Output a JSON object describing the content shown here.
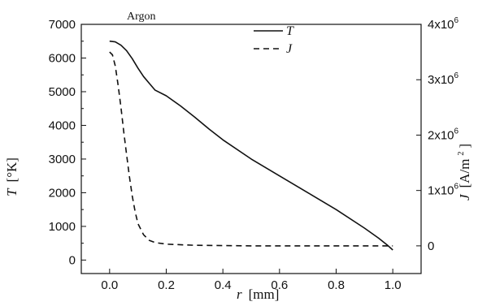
{
  "chart_data": {
    "type": "line",
    "annotation": "Argon",
    "xlabel": {
      "var": "r",
      "unit": "[mm]"
    },
    "ylabel_left": {
      "var": "T",
      "unit": "[°K]"
    },
    "ylabel_right": {
      "var": "J",
      "unit": "[A/m",
      "unit_sup": "2",
      "unit_end": "]"
    },
    "xlim": [
      -0.1,
      1.1
    ],
    "ylim_left": [
      -400,
      7000
    ],
    "ylim_right": [
      -500000,
      4000000
    ],
    "x_ticks": [
      0.0,
      0.2,
      0.4,
      0.6,
      0.8,
      1.0
    ],
    "x_tick_labels": [
      "0.0",
      "0.2",
      "0.4",
      "0.6",
      "0.8",
      "1.0"
    ],
    "y_left_ticks": [
      0,
      500,
      1000,
      1500,
      2000,
      2500,
      3000,
      3500,
      4000,
      4500,
      5000,
      5500,
      6000,
      6500,
      7000
    ],
    "y_left_tick_labels": [
      "0",
      "500",
      "1000",
      "1500",
      "2000",
      "2500",
      "3000",
      "3500",
      "4000",
      "4500",
      "5000",
      "5500",
      "6000",
      "6500",
      "7000"
    ],
    "y_right_ticks": [
      0,
      1000000,
      2000000,
      3000000,
      4000000
    ],
    "y_right_tick_labels": [
      {
        "base": "0",
        "exp": ""
      },
      {
        "base": "1x10",
        "exp": "6"
      },
      {
        "base": "2x10",
        "exp": "6"
      },
      {
        "base": "3x10",
        "exp": "6"
      },
      {
        "base": "4x10",
        "exp": "6"
      }
    ],
    "grid": false,
    "legend_position": "top-center",
    "series": [
      {
        "name": "T",
        "axis": "left",
        "style": "solid",
        "x": [
          0.0,
          0.02,
          0.04,
          0.06,
          0.08,
          0.1,
          0.12,
          0.14,
          0.16,
          0.2,
          0.25,
          0.3,
          0.35,
          0.4,
          0.5,
          0.6,
          0.7,
          0.8,
          0.9,
          0.95,
          0.98,
          1.0
        ],
        "y": [
          6500,
          6480,
          6380,
          6220,
          5980,
          5700,
          5450,
          5250,
          5050,
          4880,
          4580,
          4250,
          3900,
          3570,
          3000,
          2500,
          2000,
          1500,
          950,
          650,
          450,
          300
        ]
      },
      {
        "name": "J",
        "axis": "right",
        "style": "dashed",
        "x": [
          0.0,
          0.01,
          0.02,
          0.03,
          0.04,
          0.05,
          0.06,
          0.07,
          0.08,
          0.09,
          0.1,
          0.12,
          0.14,
          0.16,
          0.2,
          0.3,
          0.5,
          0.7,
          0.9,
          1.0
        ],
        "y": [
          3500000,
          3450000,
          3250000,
          2900000,
          2500000,
          2050000,
          1650000,
          1250000,
          900000,
          620000,
          400000,
          200000,
          100000,
          60000,
          30000,
          10000,
          0,
          0,
          0,
          0
        ]
      }
    ]
  }
}
